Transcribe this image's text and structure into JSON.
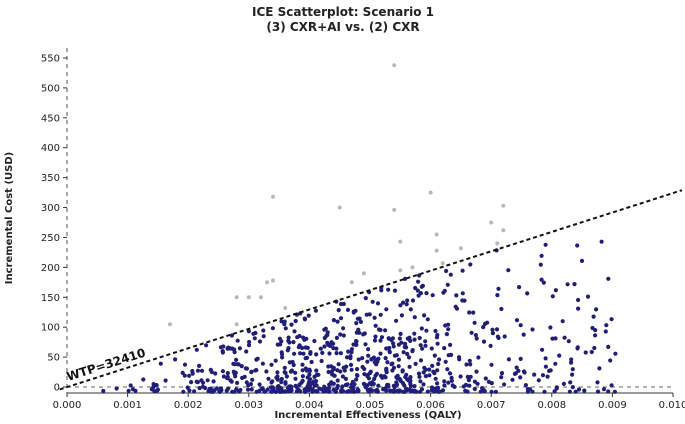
{
  "chart_data": {
    "type": "scatter",
    "title": "ICE Scatterplot: Scenario 1",
    "subtitle": "(3) CXR+AI vs. (2) CXR",
    "xlabel": "Incremental Effectiveness (QALY)",
    "ylabel": "Incremental Cost (USD)",
    "xlim": [
      0.0,
      0.01
    ],
    "ylim": [
      -10,
      560
    ],
    "x_ticks": [
      "0.000",
      "0.001",
      "0.002",
      "0.003",
      "0.004",
      "0.005",
      "0.006",
      "0.007",
      "0.008",
      "0.009",
      "0.010"
    ],
    "y_ticks": [
      "0",
      "50",
      "100",
      "150",
      "200",
      "250",
      "300",
      "350",
      "400",
      "450",
      "500",
      "550"
    ],
    "wtp": {
      "label": "WTP=32410",
      "slope": 32410
    },
    "grid": false,
    "colors": {
      "below_wtp": "#1f1f7a",
      "above_wtp": "#b8b8b8"
    },
    "above_wtp_points": [
      [
        0.0017,
        105
      ],
      [
        0.0028,
        150
      ],
      [
        0.003,
        150
      ],
      [
        0.0032,
        150
      ],
      [
        0.0033,
        175
      ],
      [
        0.0034,
        178
      ],
      [
        0.0034,
        318
      ],
      [
        0.0036,
        132
      ],
      [
        0.0045,
        300
      ],
      [
        0.0047,
        175
      ],
      [
        0.0049,
        190
      ],
      [
        0.0054,
        538
      ],
      [
        0.0054,
        296
      ],
      [
        0.0055,
        243
      ],
      [
        0.0055,
        195
      ],
      [
        0.006,
        325
      ],
      [
        0.0061,
        255
      ],
      [
        0.0061,
        228
      ],
      [
        0.0062,
        207
      ],
      [
        0.007,
        275
      ],
      [
        0.0071,
        240
      ],
      [
        0.0072,
        303
      ],
      [
        0.0072,
        262
      ],
      [
        0.0028,
        105
      ],
      [
        0.0057,
        200
      ],
      [
        0.0065,
        232
      ]
    ]
  }
}
